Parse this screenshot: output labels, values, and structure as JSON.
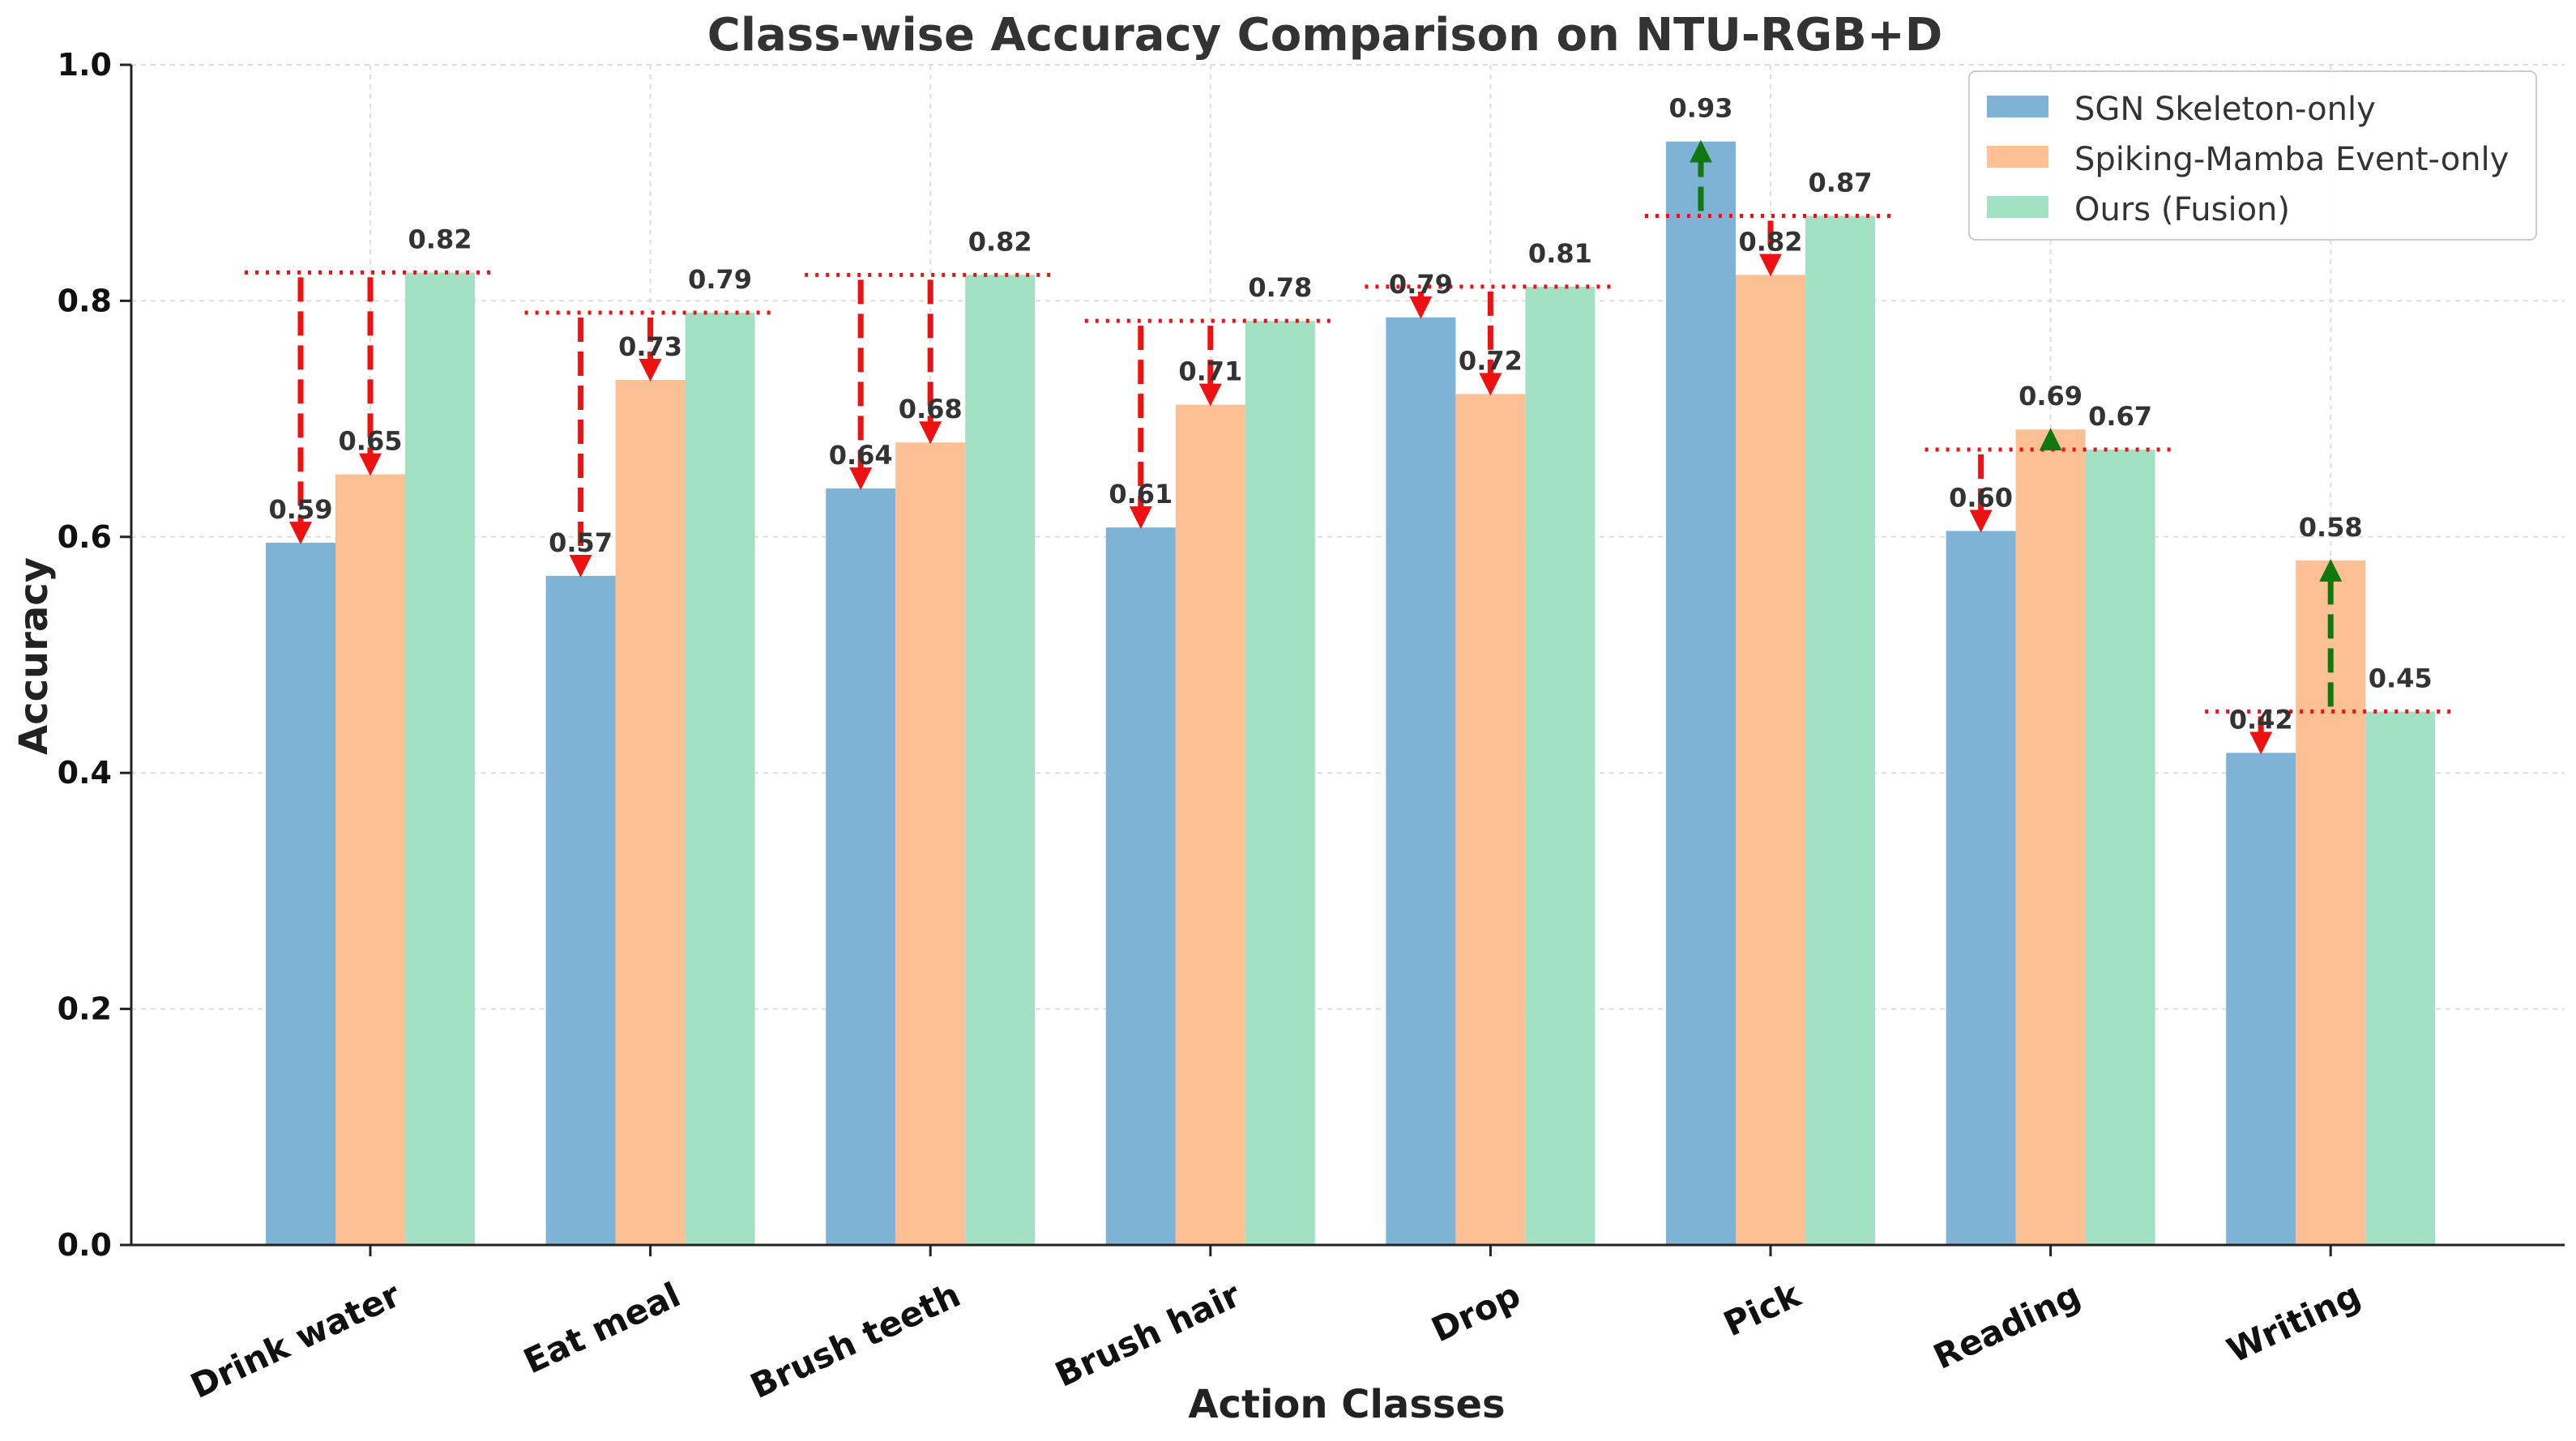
{
  "chart_data": {
    "type": "bar",
    "title": "Class-wise Accuracy Comparison on NTU-RGB+D",
    "xlabel": "Action Classes",
    "ylabel": "Accuracy",
    "ylim": [
      0,
      1.0
    ],
    "yticks": [
      "0.0",
      "0.2",
      "0.4",
      "0.6",
      "0.8",
      "1.0"
    ],
    "grid": true,
    "legend_position": "top-right",
    "categories": [
      "Drink water",
      "Eat meal",
      "Brush teeth",
      "Brush hair",
      "Drop",
      "Pick",
      "Reading",
      "Writing"
    ],
    "series": [
      {
        "name": "SGN Skeleton-only",
        "color": "#7fb3d5",
        "values": [
          0.595,
          0.567,
          0.641,
          0.608,
          0.786,
          0.935,
          0.605,
          0.417
        ],
        "labels": [
          "0.59",
          "0.57",
          "0.64",
          "0.61",
          "0.79",
          "0.93",
          "0.60",
          "0.42"
        ]
      },
      {
        "name": "Spiking-Mamba Event-only",
        "color": "#fdbf94",
        "values": [
          0.653,
          0.733,
          0.68,
          0.712,
          0.721,
          0.822,
          0.691,
          0.58
        ],
        "labels": [
          "0.65",
          "0.73",
          "0.68",
          "0.71",
          "0.72",
          "0.82",
          "0.69",
          "0.58"
        ]
      },
      {
        "name": "Ours (Fusion)",
        "color": "#a3e1c4",
        "values": [
          0.824,
          0.79,
          0.822,
          0.783,
          0.812,
          0.872,
          0.674,
          0.452
        ],
        "labels": [
          "0.82",
          "0.79",
          "0.82",
          "0.78",
          "0.81",
          "0.87",
          "0.67",
          "0.45"
        ]
      }
    ],
    "annotations": {
      "reference": "dotted red line at Ours (Fusion) value per class",
      "arrow_rule": "arrow from fusion line to baseline bar; red dashed = fusion higher, green dashed = baseline higher",
      "colors": {
        "drop": "#ee1111",
        "gain": "#117711",
        "reference_line": "#ee1111"
      }
    }
  }
}
